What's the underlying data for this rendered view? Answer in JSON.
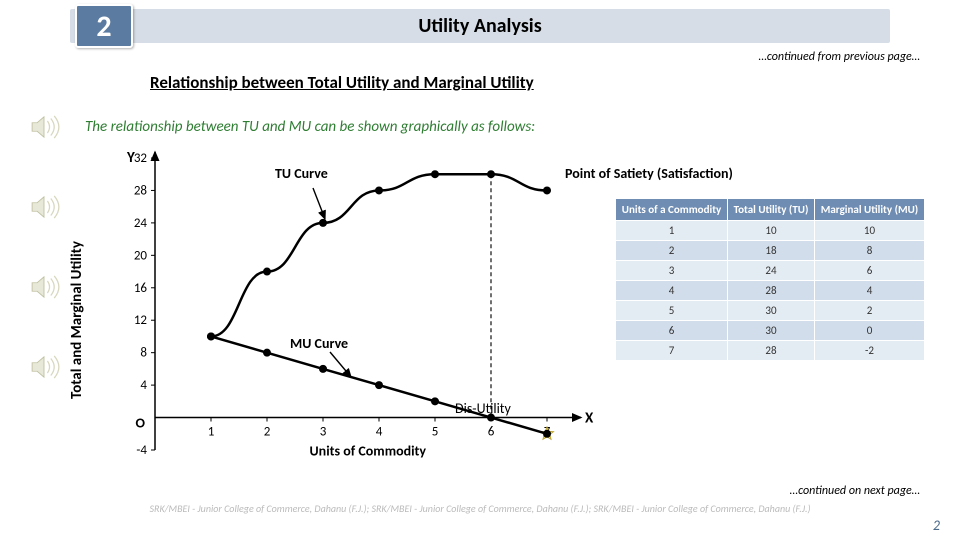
{
  "header": {
    "chapter": "2",
    "title": "Utility Analysis",
    "continued_prev": "…continued from previous page…"
  },
  "section": {
    "heading": "Relationship between Total Utility and Marginal Utility",
    "intro": "The relationship between TU and MU can be shown graphically as follows:"
  },
  "chart": {
    "type": "line-scatter",
    "y_axis_letter": "Y",
    "x_axis_letter": "X",
    "ylabel": "Total and Marginal Utility",
    "xlabel": "Units of Commodity",
    "origin_label": "O",
    "xlim": [
      0,
      7.5
    ],
    "ylim": [
      -4,
      32
    ],
    "yticks": [
      -4,
      4,
      8,
      12,
      16,
      20,
      24,
      28,
      32
    ],
    "xticks": [
      1,
      2,
      3,
      4,
      5,
      6,
      7
    ],
    "line_color": "#000000",
    "point_color": "#000000",
    "line_width": 2.5,
    "point_radius": 4,
    "dash_color": "#222222",
    "axis_color": "#000000",
    "grid": false,
    "satiety_x": 6,
    "satiety_y": 30,
    "disutility_x": 7,
    "disutility_y": -2,
    "tu_points": [
      [
        1,
        10
      ],
      [
        2,
        18
      ],
      [
        3,
        24
      ],
      [
        4,
        28
      ],
      [
        5,
        30
      ],
      [
        6,
        30
      ],
      [
        7,
        28
      ]
    ],
    "mu_points": [
      [
        1,
        10
      ],
      [
        2,
        8
      ],
      [
        3,
        6
      ],
      [
        4,
        4
      ],
      [
        5,
        2
      ],
      [
        6,
        0
      ],
      [
        7,
        -2
      ]
    ],
    "annotations": {
      "tu_curve": "TU Curve",
      "mu_curve": "MU Curve",
      "satiety": "Point of Satiety (Satisfaction)",
      "disutility": "Dis-Utility"
    }
  },
  "table": {
    "columns": [
      "Units of a Commodity",
      "Total Utility (TU)",
      "Marginal Utility (MU)"
    ],
    "rows": [
      [
        "1",
        "10",
        "10"
      ],
      [
        "2",
        "18",
        "8"
      ],
      [
        "3",
        "24",
        "6"
      ],
      [
        "4",
        "28",
        "4"
      ],
      [
        "5",
        "30",
        "2"
      ],
      [
        "6",
        "30",
        "0"
      ],
      [
        "7",
        "28",
        "-2"
      ]
    ]
  },
  "footer": {
    "credit": "SRK/MBEI - Junior College of Commerce, Dahanu (F.J.);   SRK/MBEI - Junior College of Commerce, Dahanu (F.J.);   SRK/MBEI - Junior College of Commerce, Dahanu (F.J.)",
    "continued_next": "…continued on next page…",
    "page_num": "2"
  }
}
